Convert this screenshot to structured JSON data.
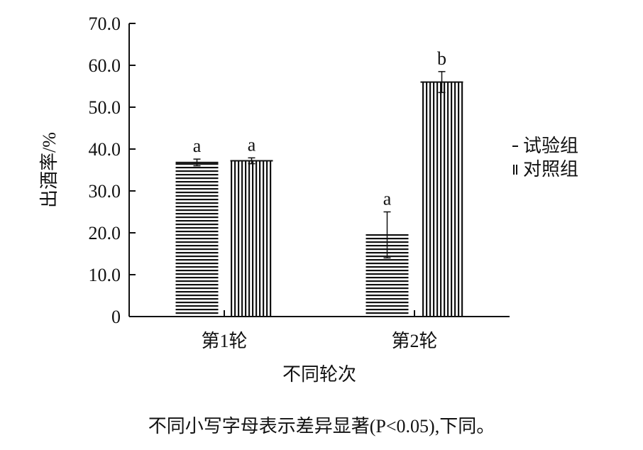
{
  "chart_data": {
    "type": "bar",
    "categories": [
      "第1轮",
      "第2轮"
    ],
    "series": [
      {
        "name": "试验组",
        "pattern": "horizontal-lines",
        "values": [
          36.8,
          19.5
        ],
        "error": [
          0.8,
          5.5
        ],
        "sig": [
          "a",
          "a"
        ]
      },
      {
        "name": "对照组",
        "pattern": "vertical-lines",
        "values": [
          37.2,
          56.0
        ],
        "error": [
          0.7,
          2.5
        ],
        "sig": [
          "a",
          "b"
        ]
      }
    ],
    "xlabel": "不同轮次",
    "ylabel": "出酒率/%",
    "ylim": [
      0,
      70
    ],
    "yticks": [
      "0",
      "10.0",
      "20.0",
      "30.0",
      "40.0",
      "50.0",
      "60.0",
      "70.0"
    ],
    "legend_position": "right",
    "grid": false
  },
  "caption": "不同小写字母表示差异显著(P<0.05),下同。",
  "colors": {
    "ink": "#111111",
    "background": "#ffffff"
  }
}
